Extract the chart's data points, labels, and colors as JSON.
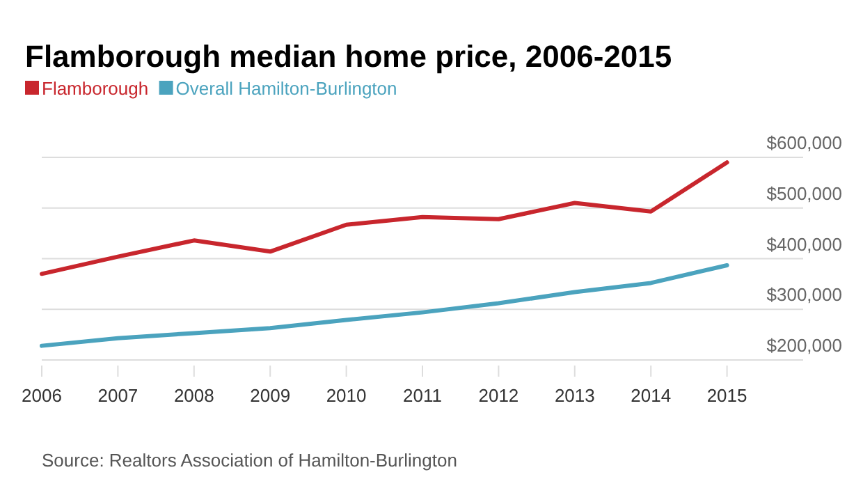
{
  "chart_data": {
    "type": "line",
    "title": "Flamborough median home price, 2006-2015",
    "x": [
      2006,
      2007,
      2008,
      2009,
      2010,
      2011,
      2012,
      2013,
      2014,
      2015
    ],
    "series": [
      {
        "name": "Flamborough",
        "color": "#c8262d",
        "values": [
          370000,
          404000,
          436000,
          414000,
          467000,
          482000,
          478000,
          510000,
          493000,
          590000
        ]
      },
      {
        "name": "Overall Hamilton-Burlington",
        "color": "#4ba3be",
        "values": [
          228000,
          243000,
          253000,
          263000,
          279000,
          294000,
          312000,
          334000,
          352000,
          387000
        ]
      }
    ],
    "xlim": [
      2006,
      2016
    ],
    "xticks": [
      2006,
      2007,
      2008,
      2009,
      2010,
      2011,
      2012,
      2013,
      2014,
      2015
    ],
    "ylim": [
      200000,
      600000
    ],
    "yticks": [
      {
        "value": 200000,
        "label": "$200,000"
      },
      {
        "value": 300000,
        "label": "$300,000"
      },
      {
        "value": 400000,
        "label": "$400,000"
      },
      {
        "value": 500000,
        "label": "$500,000"
      },
      {
        "value": 600000,
        "label": "$600,000"
      }
    ],
    "grid": "y",
    "legend": "top left",
    "marker": "none",
    "line_style": "solid",
    "annotations": [
      "Source: Realtors Association of Hamilton-Burlington"
    ]
  }
}
